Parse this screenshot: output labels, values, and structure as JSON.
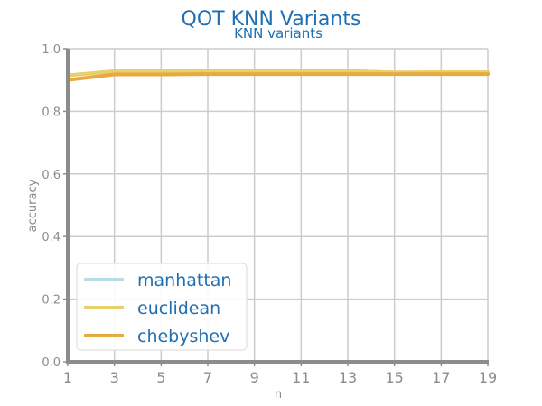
{
  "chart_data": {
    "type": "line",
    "title": "QOT KNN Variants",
    "subtitle": "KNN variants",
    "xlabel": "n",
    "ylabel": "accuracy",
    "x": [
      1,
      3,
      5,
      7,
      9,
      11,
      13,
      15,
      17,
      19
    ],
    "xlim": [
      1,
      19
    ],
    "ylim": [
      0,
      1.0
    ],
    "xticks": [
      "1",
      "3",
      "5",
      "7",
      "9",
      "11",
      "13",
      "15",
      "17",
      "19"
    ],
    "yticks": [
      "0.0",
      "0.2",
      "0.4",
      "0.6",
      "0.8",
      "1.0"
    ],
    "grid": true,
    "legend_position": "bottom-left",
    "series": [
      {
        "name": "manhattan",
        "color": "#b8dce6",
        "values": [
          0.915,
          0.928,
          0.929,
          0.929,
          0.929,
          0.929,
          0.929,
          0.924,
          0.925,
          0.925
        ]
      },
      {
        "name": "euclidean",
        "color": "#e8cf6a",
        "values": [
          0.915,
          0.928,
          0.929,
          0.929,
          0.929,
          0.929,
          0.929,
          0.924,
          0.925,
          0.925
        ]
      },
      {
        "name": "chebyshev",
        "color": "#e8a93f",
        "values": [
          0.9,
          0.918,
          0.918,
          0.919,
          0.919,
          0.919,
          0.919,
          0.919,
          0.919,
          0.919
        ]
      }
    ]
  }
}
